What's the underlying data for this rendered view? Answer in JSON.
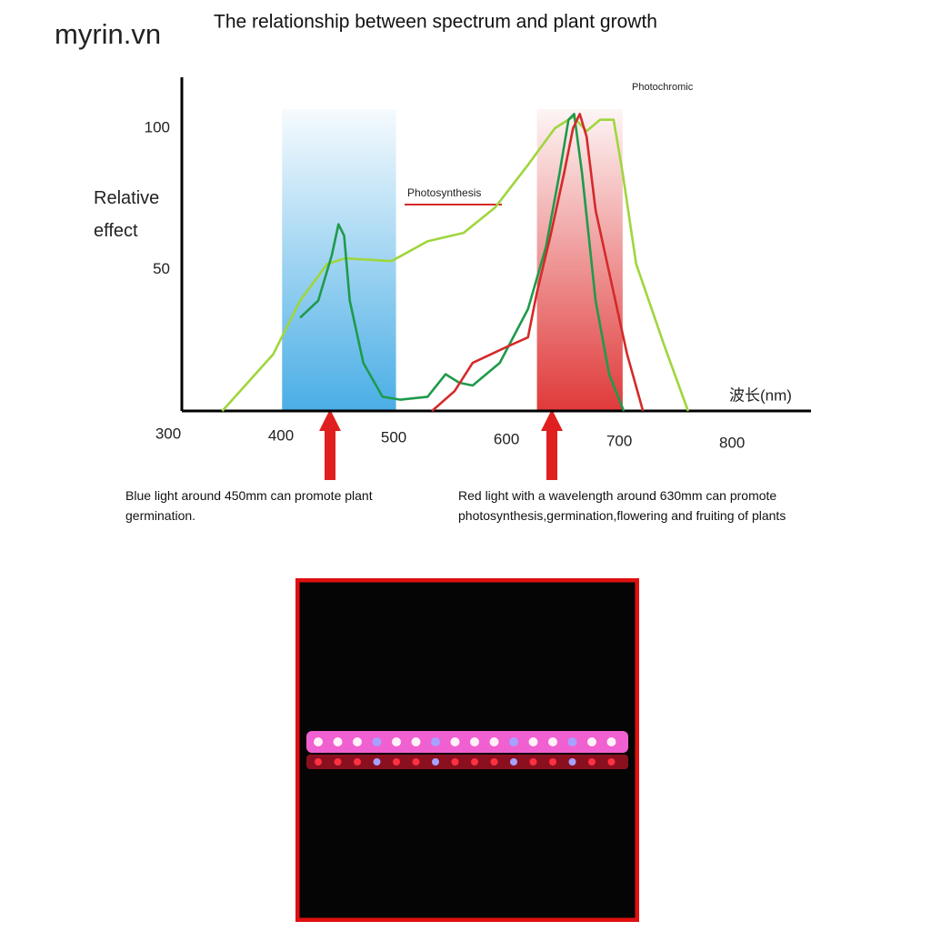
{
  "watermark": "myrin.vn",
  "chart_data": {
    "type": "line",
    "title": "The relationship between spectrum and plant growth",
    "y_label": "Relative effect",
    "x_label": "波长(nm)",
    "annotations": [
      "Photosynthesis",
      "Photochromic"
    ],
    "xlim": [
      300,
      870
    ],
    "xticks": [
      300,
      400,
      500,
      600,
      700,
      800
    ],
    "ylim": [
      0,
      118
    ],
    "yticks": [
      50,
      100
    ],
    "bands": [
      {
        "xmin": 401,
        "xmax": 502,
        "color": "#4aaee6"
      },
      {
        "xmin": 627,
        "xmax": 703,
        "color": "#e03a3a"
      }
    ],
    "series": [
      {
        "color": "#9fd63c",
        "x": [
          348,
          393,
          417,
          441,
          457,
          498,
          530,
          562,
          590,
          619,
          643,
          659,
          671,
          683,
          695,
          703,
          715,
          740,
          761
        ],
        "values": [
          0,
          20,
          39,
          52,
          54,
          53,
          60,
          63,
          72,
          87,
          100,
          104,
          99,
          103,
          103,
          84,
          52,
          23,
          0
        ]
      },
      {
        "color": "#1f9a4c",
        "x": [
          417,
          433,
          445,
          451,
          456,
          461,
          473,
          490,
          506,
          530,
          546,
          558,
          570,
          594,
          619,
          635,
          647,
          655,
          660,
          667,
          679,
          691,
          704
        ],
        "values": [
          33,
          39,
          55,
          66,
          62,
          39,
          17,
          5,
          4,
          5,
          13,
          10,
          9,
          17,
          36,
          58,
          84,
          103,
          105,
          84,
          39,
          13,
          0
        ]
      },
      {
        "color": "#d42a2a",
        "x": [
          534,
          554,
          570,
          586,
          602,
          619,
          627,
          639,
          651,
          659,
          665,
          671,
          679,
          691,
          707,
          721
        ],
        "values": [
          0,
          7,
          17,
          20,
          23,
          26,
          42,
          62,
          84,
          100,
          105,
          97,
          71,
          49,
          20,
          0
        ]
      }
    ]
  },
  "captions": [
    "Blue light around 450mm can promote plant germination.",
    "Red light with a wavelength around 630mm can promote photosynthesis,germination,flowering and fruiting of plants"
  ]
}
